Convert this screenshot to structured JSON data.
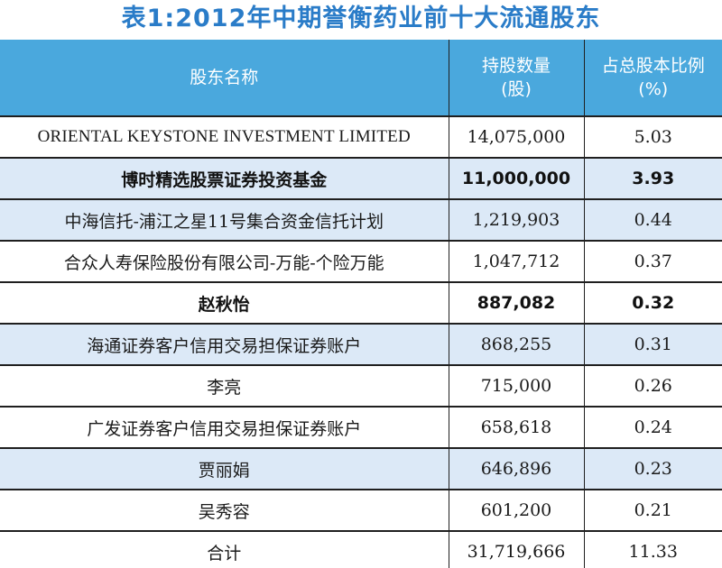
{
  "title": "表1:2012年中期誉衡药业前十大流通股东",
  "header": {
    "name": "股东名称",
    "shares_line1": "持股数量",
    "shares_line2": "(股)",
    "ratio_line1": "占总股本比例",
    "ratio_line2": "(%)"
  },
  "rows": [
    {
      "name": "ORIENTAL KEYSTONE INVESTMENT LIMITED",
      "shares": "14,075,000",
      "ratio": "5.03"
    },
    {
      "name": "博时精选股票证券投资基金",
      "shares": "11,000,000",
      "ratio": "3.93"
    },
    {
      "name": "中海信托-浦江之星11号集合资金信托计划",
      "shares": "1,219,903",
      "ratio": "0.44"
    },
    {
      "name": "合众人寿保险股份有限公司-万能-个险万能",
      "shares": "1,047,712",
      "ratio": "0.37"
    },
    {
      "name": "赵秋怡",
      "shares": "887,082",
      "ratio": "0.32"
    },
    {
      "name": "海通证券客户信用交易担保证券账户",
      "shares": "868,255",
      "ratio": "0.31"
    },
    {
      "name": "李亮",
      "shares": "715,000",
      "ratio": "0.26"
    },
    {
      "name": "广发证券客户信用交易担保证券账户",
      "shares": "658,618",
      "ratio": "0.24"
    },
    {
      "name": "贾丽娟",
      "shares": "646,896",
      "ratio": "0.23"
    },
    {
      "name": "吴秀容",
      "shares": "601,200",
      "ratio": "0.21"
    },
    {
      "name": "合计",
      "shares": "31,719,666",
      "ratio": "11.33"
    }
  ],
  "colors": {
    "title": "#2a7cc8",
    "header_bg": "#4aa8dd",
    "header_text": "#ffffff",
    "row_shade": "#dce9f7"
  }
}
